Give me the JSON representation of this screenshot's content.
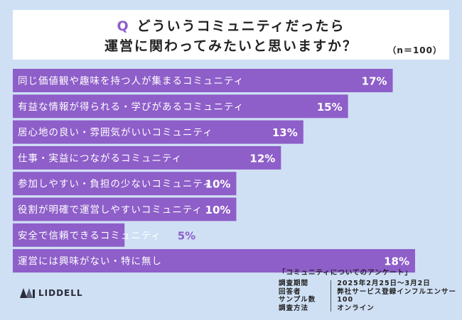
{
  "question": {
    "mark": "Q",
    "line1": "どういうコミュニティだったら",
    "line2": "運営に関わってみたいと思いますか？",
    "sample": "（n＝100）"
  },
  "chart_data": {
    "type": "bar",
    "orientation": "horizontal",
    "categories": [
      "同じ価値観や趣味を持つ人が集まるコミュニティ",
      "有益な情報が得られる・学びがあるコミュニティ",
      "居心地の良い・雰囲気がいいコミュニティ",
      "仕事・実益につながるコミュニティ",
      "参加しやすい・負担の少ないコミュニティ",
      "役割が明確で運営しやすいコミュニティ",
      "安全で信頼できるコミュニティ",
      "運営には興味がない・特に無し"
    ],
    "values": [
      17,
      15,
      13,
      12,
      10,
      10,
      5,
      18
    ],
    "value_labels": [
      "17%",
      "15%",
      "13%",
      "12%",
      "10%",
      "10%",
      "5%",
      "18%"
    ],
    "xlim": [
      0,
      18
    ],
    "bar_color": "#8e5ec9",
    "label_color": "#ffffff",
    "value_color": "#ffffff",
    "value_color_outside": "#8e5ec9",
    "grid": false
  },
  "footer": {
    "logo_text": "LIDDELL",
    "survey_title": "「コミュニティについてのアンケート」",
    "keys": [
      "調査期間",
      "回答者",
      "サンプル数",
      "調査方法"
    ],
    "values": [
      "2025年2月25日〜3月2日",
      "弊社サービス登録インフルエンサー",
      "100",
      "オンライン"
    ]
  }
}
